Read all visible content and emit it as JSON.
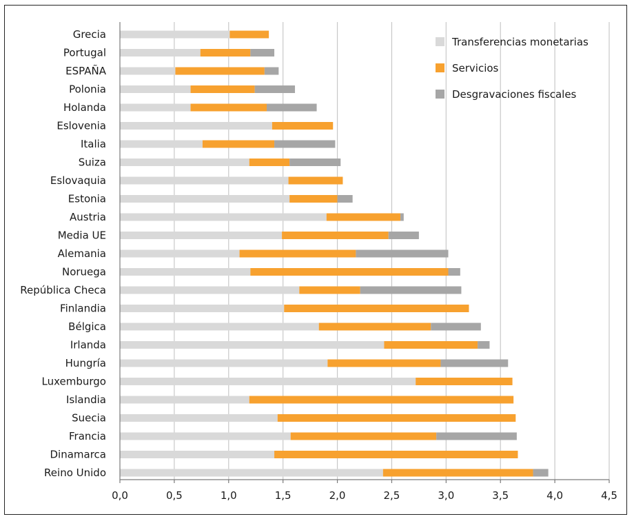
{
  "chart_data": {
    "type": "bar",
    "orientation": "horizontal",
    "stacked": true,
    "categories": [
      "Grecia",
      "Portugal",
      "ESPAÑA",
      "Polonia",
      "Holanda",
      "Eslovenia",
      "Italia",
      "Suiza",
      "Eslovaquia",
      "Estonia",
      "Austria",
      "Media UE",
      "Alemania",
      "Noruega",
      "República Checa",
      "Finlandia",
      "Bélgica",
      "Irlanda",
      "Hungría",
      "Luxemburgo",
      "Islandia",
      "Suecia",
      "Francia",
      "Dinamarca",
      "Reino Unido"
    ],
    "series": [
      {
        "name": "Transferencias monetarias",
        "color": "#d9d9d9",
        "values": [
          1.01,
          0.74,
          0.51,
          0.65,
          0.65,
          1.4,
          0.76,
          1.19,
          1.55,
          1.56,
          1.9,
          1.49,
          1.1,
          1.2,
          1.65,
          1.51,
          1.83,
          2.43,
          1.91,
          2.72,
          1.19,
          1.45,
          1.57,
          1.42,
          2.42
        ]
      },
      {
        "name": "Servicios",
        "color": "#f7a12f",
        "values": [
          0.36,
          0.46,
          0.82,
          0.59,
          0.7,
          0.56,
          0.66,
          0.37,
          0.5,
          0.44,
          0.68,
          0.98,
          1.07,
          1.82,
          0.56,
          1.7,
          1.03,
          0.86,
          1.04,
          0.89,
          2.43,
          2.19,
          1.34,
          2.24,
          1.38
        ]
      },
      {
        "name": "Desgravaciones fiscales",
        "color": "#a6a6a6",
        "values": [
          0.0,
          0.22,
          0.13,
          0.37,
          0.46,
          0.0,
          0.56,
          0.47,
          0.0,
          0.14,
          0.03,
          0.28,
          0.85,
          0.11,
          0.93,
          0.0,
          0.46,
          0.11,
          0.62,
          0.0,
          0.0,
          0.0,
          0.74,
          0.0,
          0.14
        ]
      }
    ],
    "xlim": [
      0,
      4.5
    ],
    "xticks": [
      0,
      0.5,
      1.0,
      1.5,
      2.0,
      2.5,
      3.0,
      3.5,
      4.0,
      4.5
    ],
    "xtick_labels": [
      "0,0",
      "0,5",
      "1,0",
      "1,5",
      "2,0",
      "2,5",
      "3,0",
      "3,5",
      "4,0",
      "4,5"
    ],
    "title": "",
    "xlabel": "",
    "ylabel": "",
    "grid": "vertical",
    "legend_position": "top-right"
  }
}
